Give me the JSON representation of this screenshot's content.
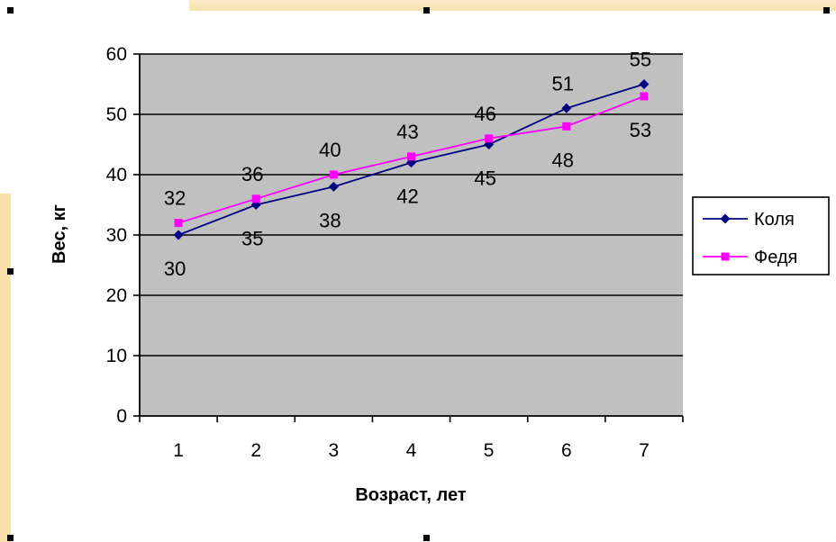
{
  "colors": {
    "plot_background": "#c0c0c0",
    "gridline": "#000000",
    "series_kolya": "#000080",
    "series_fedya": "#ff00ff",
    "slide_background": "#f7dfa7"
  },
  "chart_data": {
    "type": "line",
    "title": "",
    "xlabel": "Возраст, лет",
    "ylabel": "Вес, кг",
    "categories": [
      "1",
      "2",
      "3",
      "4",
      "5",
      "6",
      "7"
    ],
    "ylim": [
      0,
      60
    ],
    "yticks": [
      "0",
      "10",
      "20",
      "30",
      "40",
      "50",
      "60"
    ],
    "grid": true,
    "legend_position": "right",
    "series": [
      {
        "name": "Коля",
        "values": [
          30,
          35,
          38,
          42,
          45,
          51,
          55
        ],
        "marker": "diamond"
      },
      {
        "name": "Федя",
        "values": [
          32,
          36,
          40,
          43,
          46,
          48,
          53
        ],
        "marker": "square"
      }
    ]
  }
}
